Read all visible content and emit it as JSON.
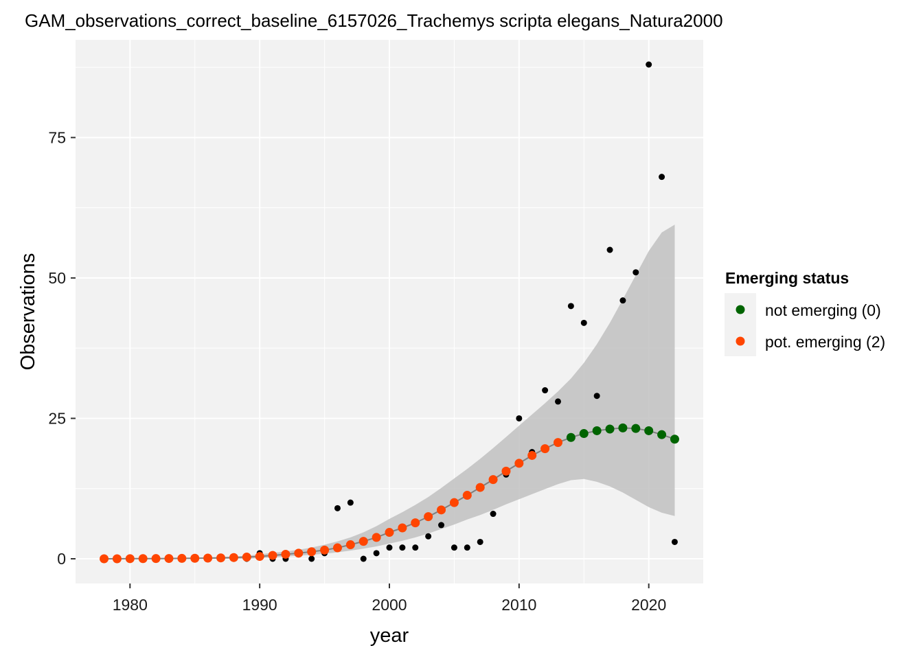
{
  "chart_data": {
    "type": "scatter",
    "title": "GAM_observations_correct_baseline_6157026_Trachemys scripta elegans_Natura2000",
    "xlabel": "year",
    "ylabel": "Observations",
    "xlim": [
      1975.8,
      2024.2
    ],
    "ylim": [
      -4.4,
      92.4
    ],
    "x_ticks": [
      1980,
      1990,
      2000,
      2010,
      2020
    ],
    "y_ticks": [
      0,
      25,
      50,
      75
    ],
    "grid": true,
    "legend": {
      "title": "Emerging status",
      "position": "right",
      "entries": [
        {
          "label": "not emerging (0)",
          "color": "#006400"
        },
        {
          "label": "pot. emerging (2)",
          "color": "#FF4500"
        }
      ]
    },
    "colors": {
      "observed": "#000000",
      "not_emerging": "#006400",
      "pot_emerging": "#FF4500",
      "ribbon": "#bdbdbd",
      "fit_line": "#7f7f7f",
      "panel": "#f2f2f2"
    },
    "observed": {
      "x": [
        1978,
        1979,
        1980,
        1981,
        1982,
        1983,
        1984,
        1985,
        1986,
        1987,
        1988,
        1989,
        1990,
        1991,
        1992,
        1993,
        1994,
        1995,
        1996,
        1997,
        1998,
        1999,
        2000,
        2001,
        2002,
        2003,
        2004,
        2005,
        2006,
        2007,
        2008,
        2009,
        2010,
        2011,
        2012,
        2013,
        2014,
        2015,
        2016,
        2017,
        2018,
        2019,
        2020,
        2021,
        2022
      ],
      "y": [
        0,
        0,
        0,
        0,
        0,
        0,
        0,
        0,
        0,
        0,
        0,
        0,
        1,
        0,
        0,
        1,
        0,
        1,
        9,
        10,
        0,
        1,
        2,
        2,
        2,
        4,
        6,
        2,
        2,
        3,
        8,
        15,
        25,
        19,
        30,
        28,
        45,
        42,
        29,
        55,
        46,
        51,
        88,
        68,
        3
      ]
    },
    "fitted": {
      "x": [
        1978,
        1979,
        1980,
        1981,
        1982,
        1983,
        1984,
        1985,
        1986,
        1987,
        1988,
        1989,
        1990,
        1991,
        1992,
        1993,
        1994,
        1995,
        1996,
        1997,
        1998,
        1999,
        2000,
        2001,
        2002,
        2003,
        2004,
        2005,
        2006,
        2007,
        2008,
        2009,
        2010,
        2011,
        2012,
        2013,
        2014,
        2015,
        2016,
        2017,
        2018,
        2019,
        2020,
        2021,
        2022
      ],
      "y": [
        0,
        0,
        0.02,
        0.03,
        0.04,
        0.05,
        0.07,
        0.09,
        0.12,
        0.16,
        0.22,
        0.3,
        0.42,
        0.6,
        0.8,
        1.0,
        1.25,
        1.55,
        1.95,
        2.5,
        3.1,
        3.8,
        4.7,
        5.5,
        6.4,
        7.5,
        8.7,
        10.0,
        11.3,
        12.7,
        14.1,
        15.6,
        17.0,
        18.4,
        19.6,
        20.7,
        21.6,
        22.3,
        22.8,
        23.1,
        23.3,
        23.2,
        22.8,
        22.1,
        21.3
      ],
      "status": [
        2,
        2,
        2,
        2,
        2,
        2,
        2,
        2,
        2,
        2,
        2,
        2,
        2,
        2,
        2,
        2,
        2,
        2,
        2,
        2,
        2,
        2,
        2,
        2,
        2,
        2,
        2,
        2,
        2,
        2,
        2,
        2,
        2,
        2,
        2,
        2,
        0,
        0,
        0,
        0,
        0,
        0,
        0,
        0,
        0
      ],
      "lower": [
        0,
        0,
        0,
        0,
        0,
        0,
        0,
        0,
        0,
        0,
        0,
        0,
        0.1,
        0.25,
        0.4,
        0.55,
        0.7,
        0.9,
        1.15,
        1.45,
        1.8,
        2.2,
        2.7,
        3.2,
        3.8,
        4.5,
        5.3,
        6.1,
        7.0,
        7.8,
        8.7,
        9.7,
        10.6,
        11.5,
        12.4,
        13.3,
        14.0,
        14.2,
        13.7,
        12.9,
        11.8,
        10.5,
        9.2,
        8.2,
        7.6
      ],
      "upper": [
        0,
        0,
        0.05,
        0.08,
        0.1,
        0.12,
        0.15,
        0.2,
        0.25,
        0.32,
        0.42,
        0.55,
        0.8,
        1.05,
        1.3,
        1.6,
        2.0,
        2.5,
        3.1,
        3.8,
        4.7,
        5.8,
        7.1,
        8.3,
        9.6,
        11.0,
        12.6,
        14.3,
        16.0,
        17.8,
        19.7,
        21.7,
        23.7,
        25.7,
        27.7,
        29.8,
        32.1,
        34.9,
        38.2,
        42.0,
        46.2,
        50.5,
        54.8,
        58.1,
        59.5
      ]
    }
  }
}
